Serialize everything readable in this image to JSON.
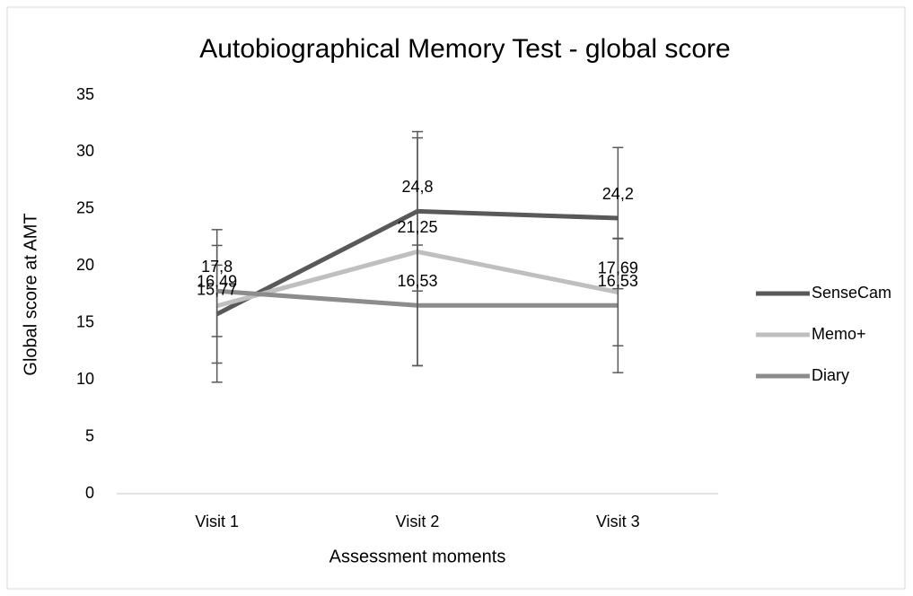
{
  "chart_data": {
    "type": "line",
    "title": "Autobiographical Memory Test - global score",
    "x_label": "Assessment moments",
    "y_label": "Global score at AMT",
    "categories": [
      "Visit 1",
      "Visit 2",
      "Visit 3"
    ],
    "series": [
      {
        "name": "SenseCam",
        "color": "#595959",
        "values": [
          15.77,
          24.8,
          24.2
        ],
        "value_labels": [
          "15,77",
          "24,8",
          "24,2"
        ],
        "errors": [
          4.3,
          7.0,
          6.2
        ]
      },
      {
        "name": "Memo+",
        "color": "#bfbfbf",
        "values": [
          16.49,
          21.25,
          17.69
        ],
        "value_labels": [
          "16,49",
          "21,25",
          "17,69"
        ],
        "errors": [
          6.7,
          10.0,
          4.7
        ]
      },
      {
        "name": "Diary",
        "color": "#8c8c8c",
        "values": [
          17.8,
          16.53,
          16.53
        ],
        "value_labels": [
          "17,8",
          "16,53",
          "16,53"
        ],
        "errors": [
          4.0,
          5.3,
          5.9
        ]
      }
    ],
    "ylim": [
      0,
      35
    ],
    "yticks": [
      0,
      5,
      10,
      15,
      20,
      25,
      30,
      35
    ],
    "grid": false,
    "legend": "right"
  }
}
